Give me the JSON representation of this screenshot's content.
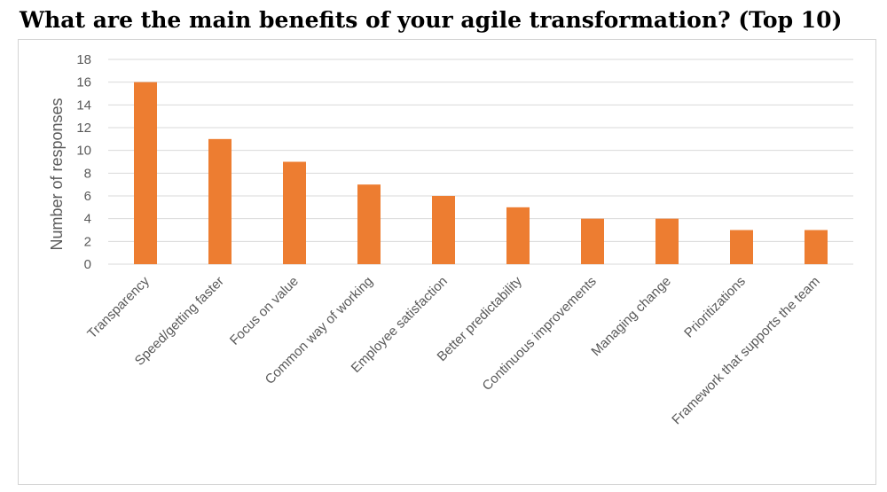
{
  "chart_data": {
    "type": "bar",
    "title": "What are the main benefits of your agile transformation? (Top 10)",
    "xlabel": "",
    "ylabel": "Number of responses",
    "ylim": [
      0,
      18
    ],
    "yticks": [
      0,
      2,
      4,
      6,
      8,
      10,
      12,
      14,
      16,
      18
    ],
    "grid": true,
    "legend": "none",
    "bar_color": "#ED7D31",
    "categories": [
      "Transparency",
      "Speed/getting faster",
      "Focus on value",
      "Common way of working",
      "Employee satisfaction",
      "Better predictability",
      "Continuous improvements",
      "Managing change",
      "Prioritizations",
      "Framework that supports the team"
    ],
    "values": [
      16,
      11,
      9,
      7,
      6,
      5,
      4,
      4,
      3,
      3
    ]
  }
}
